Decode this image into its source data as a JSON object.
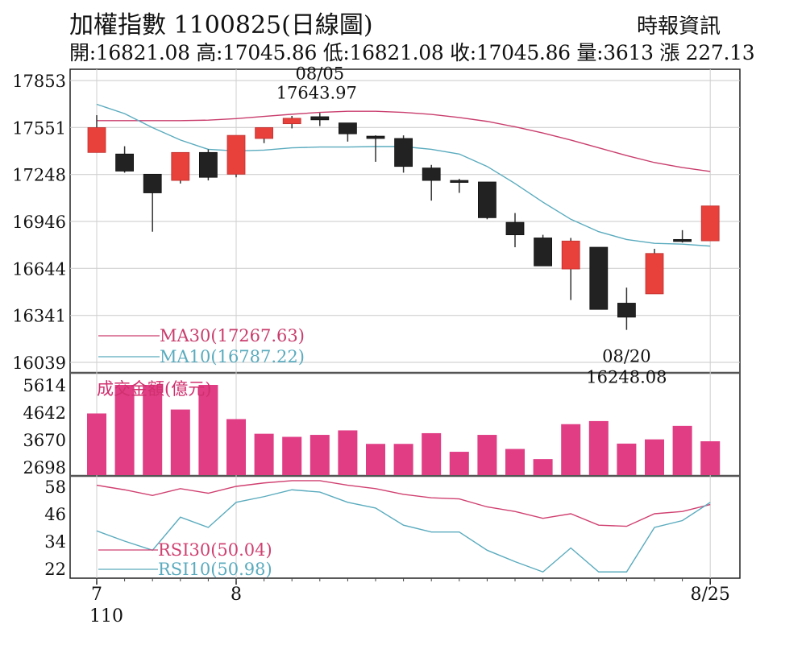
{
  "header": {
    "title": "加權指數 1100825(日線圖)",
    "source": "時報資訊",
    "summary": "開:16821.08 高:17045.86 低:16821.08 收:17045.86 量:3613 漲 227.13"
  },
  "chart_data": [
    {
      "type": "candlestick",
      "name": "price",
      "y_ticks": [
        17853,
        17551,
        17248,
        16946,
        16644,
        16341,
        16039
      ],
      "ylim": [
        16039,
        17853
      ],
      "x_ticks": [
        {
          "label": "7",
          "sublabel": "110",
          "index": 0
        },
        {
          "label": "8",
          "index": 5
        },
        {
          "label": "8/25",
          "index": 22
        }
      ],
      "candles": [
        {
          "o": 17390,
          "h": 17630,
          "l": 17390,
          "c": 17550
        },
        {
          "o": 17380,
          "h": 17430,
          "l": 17260,
          "c": 17270
        },
        {
          "o": 17250,
          "h": 17250,
          "l": 16880,
          "c": 17130
        },
        {
          "o": 17210,
          "h": 17390,
          "l": 17190,
          "c": 17390
        },
        {
          "o": 17390,
          "h": 17410,
          "l": 17210,
          "c": 17230
        },
        {
          "o": 17250,
          "h": 17500,
          "l": 17230,
          "c": 17500
        },
        {
          "o": 17480,
          "h": 17550,
          "l": 17450,
          "c": 17550
        },
        {
          "o": 17575,
          "h": 17625,
          "l": 17545,
          "c": 17610
        },
        {
          "o": 17620,
          "h": 17643.97,
          "l": 17560,
          "c": 17600
        },
        {
          "o": 17580,
          "h": 17580,
          "l": 17460,
          "c": 17510
        },
        {
          "o": 17495,
          "h": 17500,
          "l": 17330,
          "c": 17480
        },
        {
          "o": 17480,
          "h": 17500,
          "l": 17260,
          "c": 17300
        },
        {
          "o": 17290,
          "h": 17310,
          "l": 17080,
          "c": 17210
        },
        {
          "o": 17210,
          "h": 17220,
          "l": 17130,
          "c": 17200
        },
        {
          "o": 17200,
          "h": 17200,
          "l": 16960,
          "c": 16970
        },
        {
          "o": 16940,
          "h": 17000,
          "l": 16780,
          "c": 16860
        },
        {
          "o": 16840,
          "h": 16860,
          "l": 16660,
          "c": 16660
        },
        {
          "o": 16640,
          "h": 16840,
          "l": 16440,
          "c": 16820
        },
        {
          "o": 16780,
          "h": 16780,
          "l": 16380,
          "c": 16380
        },
        {
          "o": 16420,
          "h": 16520,
          "l": 16248.08,
          "c": 16330
        },
        {
          "o": 16480,
          "h": 16770,
          "l": 16480,
          "c": 16740
        },
        {
          "o": 16830,
          "h": 16890,
          "l": 16810,
          "c": 16820
        },
        {
          "o": 16821.08,
          "h": 17045.86,
          "l": 16821.08,
          "c": 17045.86
        }
      ],
      "ma": [
        {
          "name": "MA30(17267.63)",
          "color": "#c93d6d",
          "values": [
            17595,
            17595,
            17595,
            17595,
            17598,
            17608,
            17622,
            17636,
            17648,
            17655,
            17655,
            17648,
            17635,
            17615,
            17590,
            17555,
            17515,
            17470,
            17420,
            17370,
            17325,
            17293,
            17267.63
          ]
        },
        {
          "name": "MA10(16787.22)",
          "color": "#5aabbe",
          "values": [
            17700,
            17640,
            17550,
            17470,
            17410,
            17400,
            17405,
            17420,
            17425,
            17425,
            17428,
            17428,
            17410,
            17380,
            17300,
            17190,
            17070,
            16960,
            16880,
            16830,
            16805,
            16800,
            16787.22
          ]
        }
      ],
      "annotations": [
        {
          "date": "08/05",
          "value": "17643.97",
          "index": 8
        },
        {
          "date": "08/20",
          "value": "16248.08",
          "index": 19
        }
      ]
    },
    {
      "type": "bar",
      "name": "volume",
      "label": "成交金額(億元)",
      "y_ticks": [
        5614,
        4642,
        3670,
        2698
      ],
      "ylim": [
        2698,
        5614
      ],
      "color": "#e03d85",
      "values": [
        4600,
        5614,
        5614,
        4740,
        5614,
        4400,
        3880,
        3770,
        3840,
        4000,
        3520,
        3520,
        3900,
        3240,
        3840,
        3340,
        2980,
        4220,
        4330,
        3530,
        3680,
        4160,
        3613
      ]
    },
    {
      "type": "line",
      "name": "rsi",
      "y_ticks": [
        58,
        46,
        34,
        22
      ],
      "ylim": [
        17,
        62
      ],
      "series": [
        {
          "name": "RSI30(50.04)",
          "color": "#d04070",
          "values": [
            58.5,
            56.5,
            54,
            57,
            55,
            58,
            59.5,
            60.5,
            60.5,
            58.5,
            57,
            54.5,
            53,
            52.5,
            49,
            47,
            44,
            46,
            41,
            40.5,
            46,
            47,
            50.04
          ]
        },
        {
          "name": "RSI10(50.98)",
          "color": "#5aabbe",
          "values": [
            38.5,
            34,
            30,
            44.5,
            40,
            51,
            53.5,
            56.5,
            55.5,
            51,
            48.5,
            41,
            38,
            38,
            30,
            25,
            20.5,
            31,
            20.5,
            20.5,
            40,
            43,
            50.98
          ]
        }
      ]
    }
  ]
}
